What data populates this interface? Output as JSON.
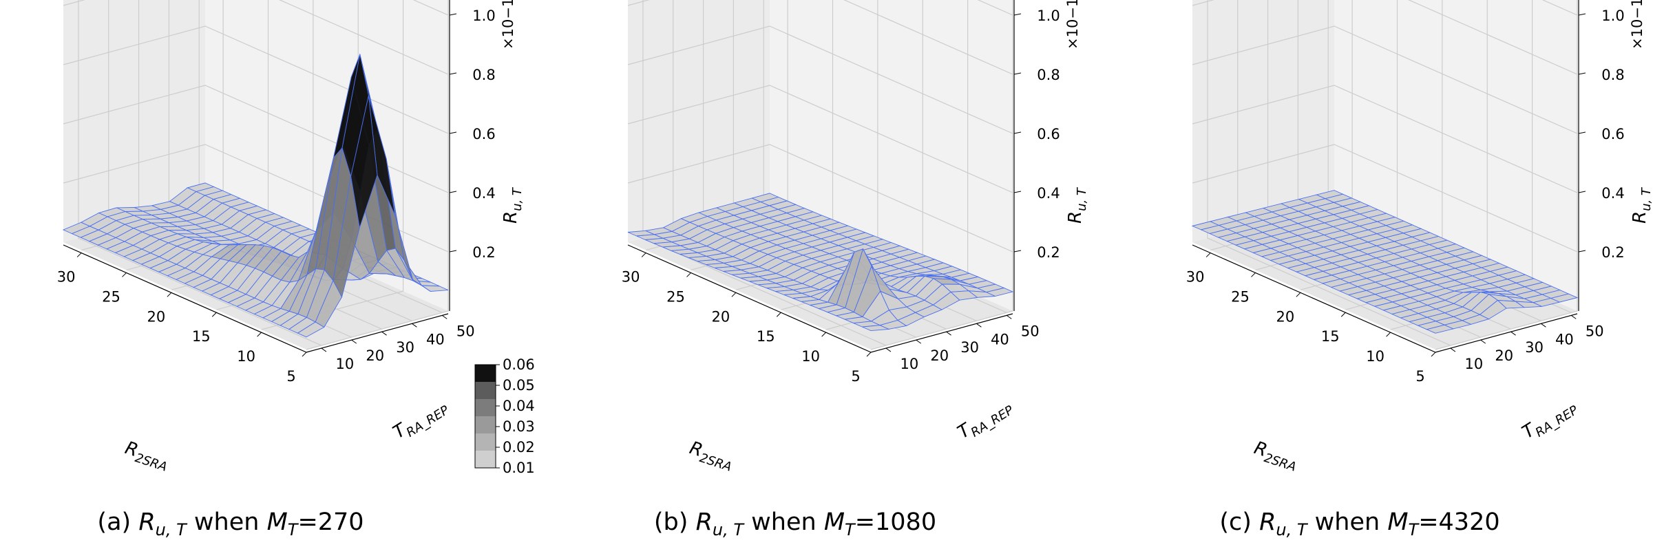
{
  "chart_data": [
    {
      "type": "surface",
      "caption": "(a) R_{u,T} when M_T=270",
      "caption_parts": {
        "prefix": "(a) ",
        "metric": "R",
        "metric_sub": "u, T",
        "middle": " when ",
        "param": "M",
        "param_sub": "T",
        "value": "=270"
      },
      "x_label": "R_2SRA",
      "y_label": "T_RA_REP",
      "z_label": "R_u,T",
      "x_ticks": [
        "30",
        "25",
        "20",
        "15",
        "10",
        "5"
      ],
      "y_ticks": [
        "10",
        "20",
        "30",
        "40",
        "50"
      ],
      "z_ticks": [
        "0.2",
        "0.4",
        "0.6",
        "0.8",
        "1.0"
      ],
      "z_multiplier": "×10−1",
      "x_range": [
        5,
        32
      ],
      "y_range": [
        5,
        52
      ],
      "z_range": [
        0,
        1.0
      ],
      "peak": {
        "x": 7,
        "y": 29,
        "z": 0.85
      },
      "surface_note": "high ridge along R_2SRA≈7 rising to peak near T_RA_REP≈29"
    },
    {
      "type": "surface",
      "caption": "(b) R_{u,T} when M_T=1080",
      "caption_parts": {
        "prefix": "(b) ",
        "metric": "R",
        "metric_sub": "u, T",
        "middle": " when ",
        "param": "M",
        "param_sub": "T",
        "value": "=1080"
      },
      "x_label": "R_2SRA",
      "y_label": "T_RA_REP",
      "z_label": "R_u,T",
      "x_ticks": [
        "30",
        "25",
        "20",
        "15",
        "10",
        "5"
      ],
      "y_ticks": [
        "10",
        "20",
        "30",
        "40",
        "50"
      ],
      "z_ticks": [
        "0.2",
        "0.4",
        "0.6",
        "0.8",
        "1.0"
      ],
      "z_multiplier": "×10−1",
      "x_range": [
        5,
        32
      ],
      "y_range": [
        5,
        52
      ],
      "z_range": [
        0,
        1.0
      ],
      "peak": {
        "x": 10,
        "y": 18,
        "z": 0.26
      }
    },
    {
      "type": "surface",
      "caption": "(c) R_{u,T} when M_T=4320",
      "caption_parts": {
        "prefix": "(c) ",
        "metric": "R",
        "metric_sub": "u, T",
        "middle": " when ",
        "param": "M",
        "param_sub": "T",
        "value": "=4320"
      },
      "x_label": "R_2SRA",
      "y_label": "T_RA_REP",
      "z_label": "R_u,T",
      "x_ticks": [
        "30",
        "25",
        "20",
        "15",
        "10",
        "5"
      ],
      "y_ticks": [
        "10",
        "20",
        "30",
        "40",
        "50"
      ],
      "z_ticks": [
        "0.2",
        "0.4",
        "0.6",
        "0.8",
        "1.0"
      ],
      "z_multiplier": "×10−1",
      "x_range": [
        5,
        32
      ],
      "y_range": [
        5,
        52
      ],
      "z_range": [
        0,
        1.0
      ],
      "peak": {
        "x": 7,
        "y": 30,
        "z": 0.1
      }
    }
  ],
  "colorbar": {
    "ticks": [
      "0.06",
      "0.05",
      "0.04",
      "0.03",
      "0.02",
      "0.01"
    ],
    "levels": [
      0.01,
      0.02,
      0.03,
      0.04,
      0.05,
      0.06
    ],
    "colors": [
      "#cfcfcf",
      "#b4b4b4",
      "#9a9a9a",
      "#7c7c7c",
      "#5c5c5c",
      "#111111"
    ]
  },
  "colors": {
    "wireframe": "#4a6ff0",
    "surface_light": "#c8c8c8",
    "surface_dark": "#1a1a1a"
  }
}
